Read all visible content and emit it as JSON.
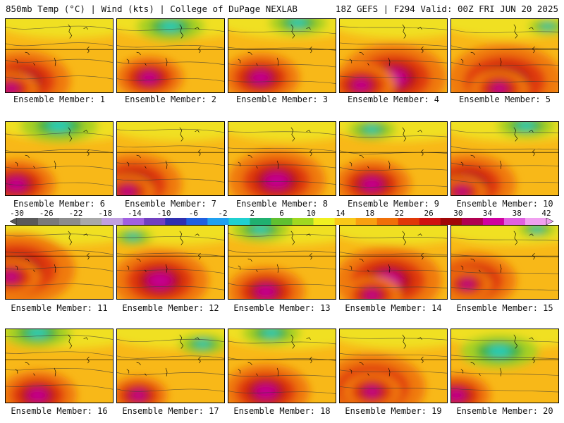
{
  "header": {
    "left": "850mb Temp (°C) | Wind (kts) | College of DuPage NEXLAB",
    "right": "18Z GEFS | F294 Valid: 00Z FRI JUN 20 2025"
  },
  "members": [
    {
      "label": "Ensemble Member: 1",
      "warm": [
        [
          0.15,
          0.85,
          1.0
        ],
        [
          0.05,
          0.95,
          0.55
        ]
      ],
      "cold": []
    },
    {
      "label": "Ensemble Member: 2",
      "warm": [
        [
          0.3,
          0.8,
          0.7
        ]
      ],
      "cold": [
        [
          0.5,
          0.1,
          0.7
        ]
      ]
    },
    {
      "label": "Ensemble Member: 3",
      "warm": [
        [
          0.3,
          0.8,
          0.8
        ]
      ],
      "cold": [
        [
          0.65,
          0.05,
          0.6
        ]
      ]
    },
    {
      "label": "Ensemble Member: 4",
      "warm": [
        [
          0.5,
          0.8,
          1.1
        ],
        [
          0.2,
          0.9,
          0.7
        ]
      ],
      "cold": []
    },
    {
      "label": "Ensemble Member: 5",
      "warm": [
        [
          0.5,
          0.85,
          1.2
        ],
        [
          0.45,
          0.95,
          0.6
        ]
      ],
      "cold": [
        [
          0.9,
          0.1,
          0.4
        ]
      ]
    },
    {
      "label": "Ensemble Member: 6",
      "warm": [
        [
          0.1,
          0.85,
          0.8
        ]
      ],
      "cold": [
        [
          0.5,
          0.05,
          0.8
        ]
      ]
    },
    {
      "label": "Ensemble Member: 7",
      "warm": [
        [
          0.15,
          0.85,
          1.0
        ],
        [
          0.1,
          0.95,
          0.55
        ]
      ],
      "cold": []
    },
    {
      "label": "Ensemble Member: 8",
      "warm": [
        [
          0.45,
          0.8,
          1.0
        ]
      ],
      "cold": []
    },
    {
      "label": "Ensemble Member: 9",
      "warm": [
        [
          0.3,
          0.85,
          0.8
        ]
      ],
      "cold": [
        [
          0.3,
          0.1,
          0.5
        ]
      ]
    },
    {
      "label": "Ensemble Member: 10",
      "warm": [
        [
          0.15,
          0.85,
          1.0
        ],
        [
          0.1,
          0.95,
          0.5
        ]
      ],
      "cold": [
        [
          0.7,
          0.05,
          0.6
        ]
      ]
    },
    {
      "label": "Ensemble Member: 11",
      "warm": [
        [
          0.1,
          0.6,
          1.2
        ],
        [
          0.05,
          0.7,
          0.6
        ]
      ],
      "cold": []
    },
    {
      "label": "Ensemble Member: 12",
      "warm": [
        [
          0.4,
          0.75,
          1.0
        ]
      ],
      "cold": [
        [
          0.15,
          0.15,
          0.4
        ]
      ]
    },
    {
      "label": "Ensemble Member: 13",
      "warm": [
        [
          0.35,
          0.9,
          0.8
        ]
      ],
      "cold": [
        [
          0.3,
          0.05,
          0.6
        ]
      ]
    },
    {
      "label": "Ensemble Member: 14",
      "warm": [
        [
          0.45,
          0.75,
          1.1
        ],
        [
          0.3,
          0.95,
          0.6
        ]
      ],
      "cold": []
    },
    {
      "label": "Ensemble Member: 15",
      "warm": [
        [
          0.2,
          0.75,
          0.9
        ],
        [
          0.15,
          0.8,
          0.5
        ]
      ],
      "cold": [
        [
          0.8,
          0.05,
          0.4
        ]
      ]
    },
    {
      "label": "Ensemble Member: 16",
      "warm": [
        [
          0.3,
          0.9,
          0.8
        ]
      ],
      "cold": [
        [
          0.3,
          0.05,
          0.7
        ]
      ]
    },
    {
      "label": "Ensemble Member: 17",
      "warm": [
        [
          0.2,
          0.9,
          0.6
        ]
      ],
      "cold": [
        [
          0.8,
          0.2,
          0.5
        ]
      ]
    },
    {
      "label": "Ensemble Member: 18",
      "warm": [
        [
          0.35,
          0.85,
          0.9
        ]
      ],
      "cold": [
        [
          0.4,
          0.05,
          0.6
        ]
      ]
    },
    {
      "label": "Ensemble Member: 19",
      "warm": [
        [
          0.3,
          0.8,
          1.1
        ],
        [
          0.3,
          0.85,
          0.6
        ]
      ],
      "cold": []
    },
    {
      "label": "Ensemble Member: 20",
      "warm": [
        [
          0.05,
          0.9,
          0.7
        ]
      ],
      "cold": [
        [
          0.45,
          0.3,
          0.8
        ]
      ]
    }
  ],
  "colorbar": {
    "labels": [
      "-30",
      "-26",
      "-22",
      "-18",
      "-14",
      "-10",
      "-6",
      "-2",
      "2",
      "6",
      "10",
      "14",
      "18",
      "22",
      "26",
      "30",
      "34",
      "38",
      "42"
    ],
    "colors": [
      "#5a5a5a",
      "#7a7a7a",
      "#8c8c8c",
      "#a8a8a8",
      "#c0a0e0",
      "#a060e0",
      "#7040c0",
      "#3030b0",
      "#2060e0",
      "#20a0f0",
      "#20d0d0",
      "#20b070",
      "#60c030",
      "#a0d820",
      "#f0f020",
      "#f8c818",
      "#f8a010",
      "#f07008",
      "#e03808",
      "#d01010",
      "#a00808",
      "#b00050",
      "#d000a0",
      "#e060e0",
      "#f0a0f0"
    ]
  },
  "palette": {
    "hot": "#c40090",
    "vwarm": "#b80818",
    "warm": "#e03a10",
    "mild": "#f07a10",
    "neutral": "#f8b818",
    "cool": "#f0e020",
    "cold": "#a8d020",
    "vcold": "#40b040",
    "frigid": "#20d0c0"
  }
}
